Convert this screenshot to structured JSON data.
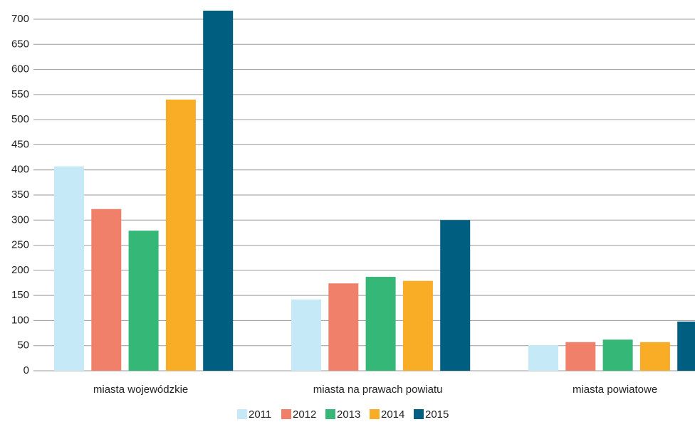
{
  "chart_data": {
    "type": "bar",
    "categories": [
      "miasta wojewódzkie",
      "miasta na prawach powiatu",
      "miasta powiatowe"
    ],
    "series": [
      {
        "name": "2011",
        "color": "#c6e9f8",
        "values": [
          407,
          142,
          51
        ]
      },
      {
        "name": "2012",
        "color": "#f0806a",
        "values": [
          322,
          174,
          57
        ]
      },
      {
        "name": "2013",
        "color": "#35b877",
        "values": [
          279,
          187,
          62
        ]
      },
      {
        "name": "2014",
        "color": "#f9ac25",
        "values": [
          540,
          179,
          57
        ]
      },
      {
        "name": "2015",
        "color": "#005f80",
        "values": [
          717,
          300,
          98
        ]
      }
    ],
    "ylim": [
      0,
      700
    ],
    "yticks": [
      0,
      50,
      100,
      150,
      200,
      250,
      300,
      350,
      400,
      450,
      500,
      550,
      600,
      650,
      700
    ],
    "grid": true,
    "legend": "bottom"
  }
}
